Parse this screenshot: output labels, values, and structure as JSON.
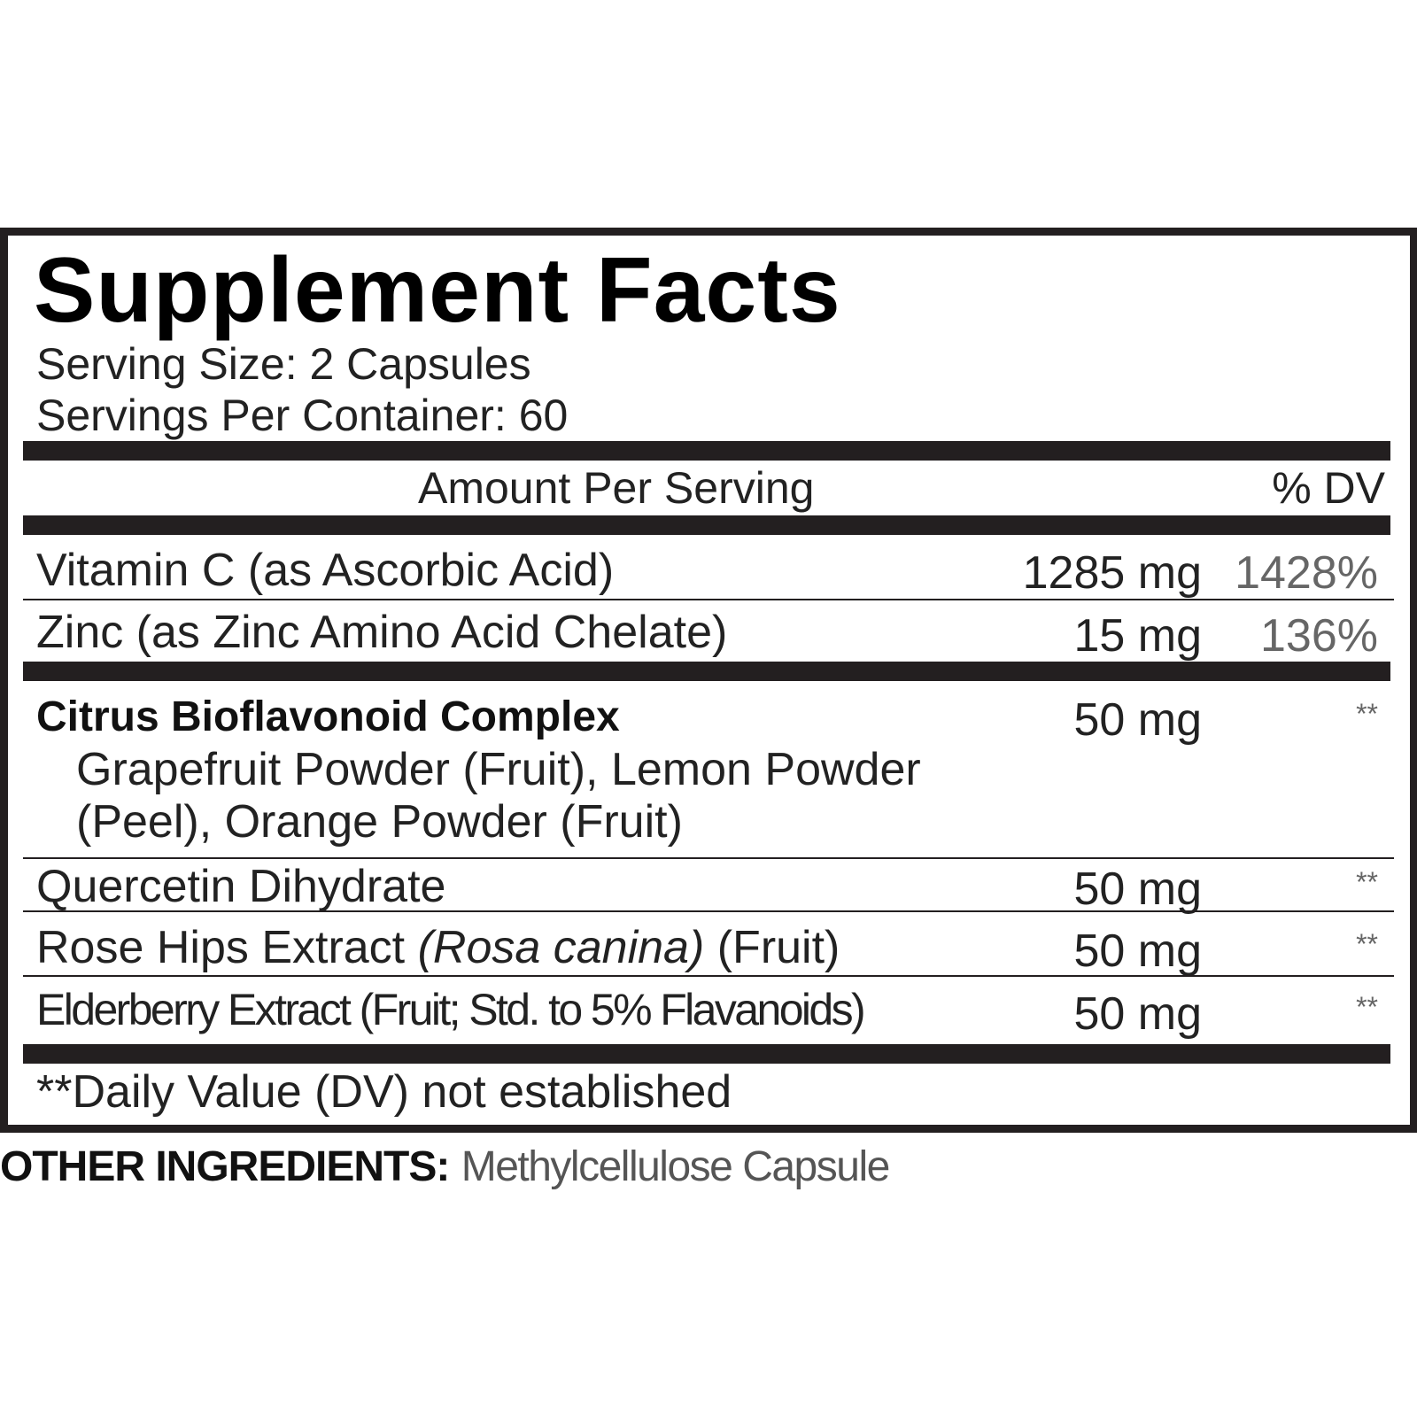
{
  "title": "Supplement Facts",
  "serving_size": "Serving Size: 2 Capsules",
  "servings_per_container": "Servings Per Container: 60",
  "header": {
    "amount": "Amount Per Serving",
    "dv": "% DV"
  },
  "rows": [
    {
      "name": "Vitamin C (as Ascorbic Acid)",
      "amount": "1285 mg",
      "dv": "1428%"
    },
    {
      "name": "Zinc (as Zinc Amino Acid Chelate)",
      "amount": "15 mg",
      "dv": "136%"
    },
    {
      "name": "Citrus Bioflavonoid Complex",
      "amount": "50 mg",
      "dv": "**",
      "sub_line1": "Grapefruit Powder (Fruit), Lemon Powder",
      "sub_line2": "(Peel), Orange Powder (Fruit)"
    },
    {
      "name": "Quercetin Dihydrate",
      "amount": "50 mg",
      "dv": "**"
    },
    {
      "name_prefix": "Rose Hips Extract ",
      "name_italic": "(Rosa canina)",
      "name_suffix": " (Fruit)",
      "amount": "50 mg",
      "dv": "**"
    },
    {
      "name": "Elderberry Extract (Fruit; Std. to 5% Flavanoids)",
      "amount": "50 mg",
      "dv": "**"
    }
  ],
  "footnote": "**Daily Value (DV) not established",
  "other_ingredients": {
    "label": "OTHER INGREDIENTS:",
    "value": "Methylcellulose Capsule"
  }
}
